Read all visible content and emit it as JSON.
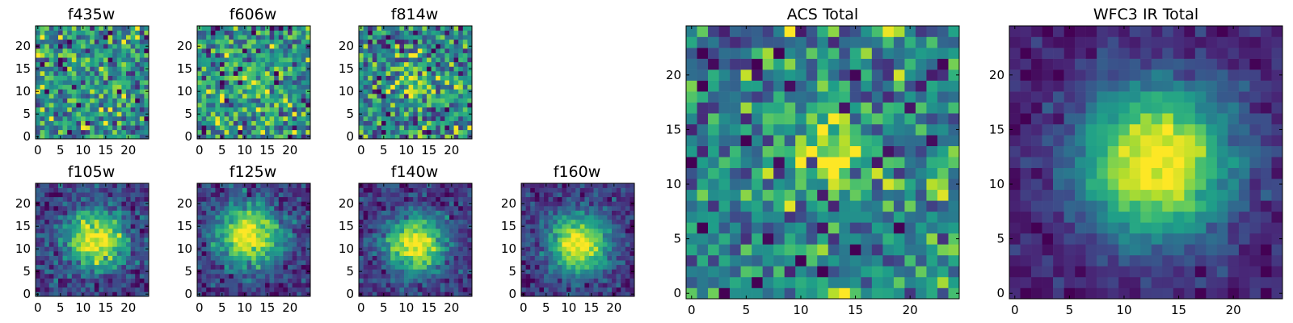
{
  "chart_data": [
    {
      "type": "heatmap",
      "title": "f435w",
      "grid": false,
      "colormap": "viridis",
      "rows": 25,
      "cols": 25,
      "xlim": [
        -0.5,
        24.5
      ],
      "ylim": [
        -0.5,
        24.5
      ],
      "xticks": [
        0,
        5,
        10,
        15,
        20
      ],
      "yticks": [
        0,
        5,
        10,
        15,
        20
      ],
      "source_profile": {
        "center": [
          13,
          13
        ],
        "amplitude": 0.15,
        "sigma": 3,
        "noise": 1.0,
        "seed": 11
      }
    },
    {
      "type": "heatmap",
      "title": "f606w",
      "grid": false,
      "colormap": "viridis",
      "rows": 25,
      "cols": 25,
      "xlim": [
        -0.5,
        24.5
      ],
      "ylim": [
        -0.5,
        24.5
      ],
      "xticks": [
        0,
        5,
        10,
        15,
        20
      ],
      "yticks": [
        0,
        5,
        10,
        15,
        20
      ],
      "source_profile": {
        "center": [
          12,
          12
        ],
        "amplitude": 0.3,
        "sigma": 3.5,
        "noise": 1.0,
        "seed": 23
      }
    },
    {
      "type": "heatmap",
      "title": "f814w",
      "grid": false,
      "colormap": "viridis",
      "rows": 25,
      "cols": 25,
      "xlim": [
        -0.5,
        24.5
      ],
      "ylim": [
        -0.5,
        24.5
      ],
      "xticks": [
        0,
        5,
        10,
        15,
        20
      ],
      "yticks": [
        0,
        5,
        10,
        15,
        20
      ],
      "source_profile": {
        "center": [
          13,
          12
        ],
        "amplitude": 0.35,
        "sigma": 3.5,
        "noise": 1.0,
        "seed": 37
      }
    },
    {
      "type": "heatmap",
      "title": "f105w",
      "grid": false,
      "colormap": "viridis",
      "rows": 25,
      "cols": 25,
      "xlim": [
        -0.5,
        24.5
      ],
      "ylim": [
        -0.5,
        24.5
      ],
      "xticks": [
        0,
        5,
        10,
        15,
        20
      ],
      "yticks": [
        0,
        5,
        10,
        15,
        20
      ],
      "source_profile": {
        "center": [
          13,
          12
        ],
        "amplitude": 1.4,
        "sigma": 4.5,
        "noise": 0.55,
        "seed": 41
      }
    },
    {
      "type": "heatmap",
      "title": "f125w",
      "grid": false,
      "colormap": "viridis",
      "rows": 25,
      "cols": 25,
      "xlim": [
        -0.5,
        24.5
      ],
      "ylim": [
        -0.5,
        24.5
      ],
      "xticks": [
        0,
        5,
        10,
        15,
        20
      ],
      "yticks": [
        0,
        5,
        10,
        15,
        20
      ],
      "source_profile": {
        "center": [
          11,
          13
        ],
        "amplitude": 1.5,
        "sigma": 5,
        "noise": 0.55,
        "seed": 53
      }
    },
    {
      "type": "heatmap",
      "title": "f140w",
      "grid": false,
      "colormap": "viridis",
      "rows": 25,
      "cols": 25,
      "xlim": [
        -0.5,
        24.5
      ],
      "ylim": [
        -0.5,
        24.5
      ],
      "xticks": [
        0,
        5,
        10,
        15,
        20
      ],
      "yticks": [
        0,
        5,
        10,
        15,
        20
      ],
      "source_profile": {
        "center": [
          12,
          11
        ],
        "amplitude": 1.6,
        "sigma": 4.5,
        "noise": 0.5,
        "seed": 67
      }
    },
    {
      "type": "heatmap",
      "title": "f160w",
      "grid": false,
      "colormap": "viridis",
      "rows": 25,
      "cols": 25,
      "xlim": [
        -0.5,
        24.5
      ],
      "ylim": [
        -0.5,
        24.5
      ],
      "xticks": [
        0,
        5,
        10,
        15,
        20
      ],
      "yticks": [
        0,
        5,
        10,
        15,
        20
      ],
      "source_profile": {
        "center": [
          12,
          11
        ],
        "amplitude": 1.7,
        "sigma": 4.5,
        "noise": 0.5,
        "seed": 79
      }
    },
    {
      "type": "heatmap",
      "title": "ACS Total",
      "grid": false,
      "colormap": "viridis",
      "rows": 25,
      "cols": 25,
      "xlim": [
        -0.5,
        24.5
      ],
      "ylim": [
        -0.5,
        24.5
      ],
      "xticks": [
        0,
        5,
        10,
        15,
        20
      ],
      "yticks": [
        0,
        5,
        10,
        15,
        20
      ],
      "source_profile": {
        "center": [
          13,
          13
        ],
        "amplitude": 0.5,
        "sigma": 3,
        "noise": 0.8,
        "seed": 97
      }
    },
    {
      "type": "heatmap",
      "title": "WFC3 IR Total",
      "grid": false,
      "colormap": "viridis",
      "rows": 25,
      "cols": 25,
      "xlim": [
        -0.5,
        24.5
      ],
      "ylim": [
        -0.5,
        24.5
      ],
      "xticks": [
        0,
        5,
        10,
        15,
        20
      ],
      "yticks": [
        0,
        5,
        10,
        15,
        20
      ],
      "source_profile": {
        "center": [
          13,
          12
        ],
        "amplitude": 2.2,
        "sigma": 5,
        "noise": 0.4,
        "seed": 131
      }
    }
  ]
}
